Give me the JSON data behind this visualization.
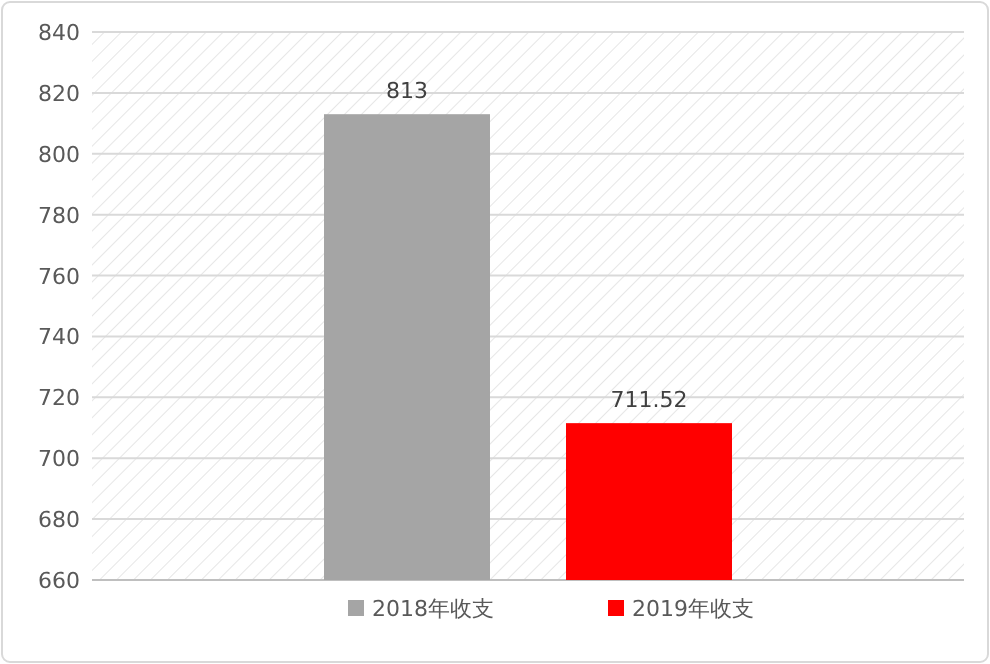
{
  "chart_data": {
    "type": "bar",
    "categories": [
      null
    ],
    "series": [
      {
        "name": "2018年收支",
        "color": "#a5a5a5",
        "values": [
          813
        ]
      },
      {
        "name": "2019年收支",
        "color": "#ff0000",
        "values": [
          711.52
        ]
      }
    ],
    "ylim": [
      660,
      840
    ],
    "yticks": [
      660,
      680,
      700,
      720,
      740,
      760,
      780,
      800,
      820,
      840
    ],
    "grid": "y",
    "legend": "bottom",
    "data_labels": true
  }
}
